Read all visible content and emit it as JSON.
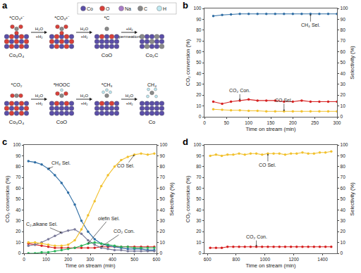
{
  "diagram": {
    "panel": "a",
    "legend": [
      {
        "label": "Co",
        "color": "#5b4fa8"
      },
      {
        "label": "O",
        "color": "#d9403a"
      },
      {
        "label": "Na",
        "color": "#a97cc8"
      },
      {
        "label": "C",
        "color": "#8a8a8a"
      },
      {
        "label": "H",
        "color": "#bfe9f2"
      }
    ],
    "rows": [
      {
        "steps": [
          {
            "adsorbate": "*CO₃²⁻",
            "surface": "Co₃O₄"
          },
          {
            "adsorbate": "*CO₃²⁻"
          },
          {
            "adsorbate": "*C",
            "surface": "CoO"
          },
          {
            "surface": "Co₂C"
          }
        ],
        "arrows": [
          {
            "above": "H₂O",
            "below": "+H₂"
          },
          {
            "above": "H₂O",
            "below": "+H₂"
          },
          {
            "above": "+H₂",
            "below": "permeation"
          }
        ]
      },
      {
        "steps": [
          {
            "adsorbate": "*CO₂",
            "surface": "Co₃O₄"
          },
          {
            "adsorbate": "*HOOC",
            "surface": "CoO"
          },
          {
            "adsorbate": "*CH₃"
          },
          {
            "adsorbate": "CH₄",
            "surface": "Co"
          }
        ],
        "arrows": [
          {
            "above": "H₂O",
            "below": "+H₂"
          },
          {
            "above": "H₂O",
            "below": "+H₂"
          },
          {
            "above": "H₂O",
            "below": "+H₂"
          }
        ]
      }
    ]
  },
  "chart_data": [
    {
      "panel": "b",
      "type": "line",
      "x_label": "Time on stream (min)",
      "y_label": "CO₂ conversion (%)",
      "y2_label": "Selectivity (%)",
      "xlim": [
        0,
        300
      ],
      "xticks": [
        0,
        50,
        100,
        150,
        200,
        250,
        300
      ],
      "ylim": [
        0,
        100
      ],
      "yticks": [
        0,
        10,
        20,
        30,
        40,
        50,
        60,
        70,
        80,
        90,
        100
      ],
      "y2lim": [
        0,
        100
      ],
      "y2ticks": [
        0,
        10,
        20,
        30,
        40,
        50,
        60,
        70,
        80,
        90,
        100
      ],
      "grid": false,
      "x": [
        20,
        40,
        60,
        80,
        100,
        120,
        140,
        160,
        180,
        200,
        220,
        240,
        260,
        280,
        300
      ],
      "series": [
        {
          "name": "CH₄ Sel.",
          "color": "#2e6da4",
          "axis": "y2",
          "values": [
            93,
            94,
            94.5,
            95,
            95,
            95,
            95,
            95,
            95,
            95,
            95,
            95,
            95,
            95,
            95
          ]
        },
        {
          "name": "CO₂ Con.",
          "color": "#d62020",
          "values": [
            14,
            12,
            14,
            15,
            16,
            15,
            15,
            15,
            14,
            14,
            15,
            14,
            14,
            14,
            14
          ]
        },
        {
          "name": "CO Sel.",
          "color": "#f2c12e",
          "axis": "y2",
          "values": [
            7,
            6.5,
            6,
            6,
            5.5,
            5.5,
            5,
            5,
            5,
            5,
            5,
            5,
            5,
            5,
            5
          ]
        }
      ]
    },
    {
      "panel": "c",
      "type": "line",
      "x_label": "Time on stream (min)",
      "y_label": "CO₂ conversion (%)",
      "y2_label": "Selectivity (%)",
      "xlim": [
        0,
        600
      ],
      "xticks": [
        0,
        100,
        200,
        300,
        400,
        500,
        600
      ],
      "ylim": [
        0,
        100
      ],
      "yticks": [
        0,
        10,
        20,
        30,
        40,
        50,
        60,
        70,
        80,
        90,
        100
      ],
      "y2lim": [
        0,
        100
      ],
      "y2ticks": [
        0,
        10,
        20,
        30,
        40,
        50,
        60,
        70,
        80,
        90,
        100
      ],
      "grid": false,
      "x": [
        20,
        50,
        80,
        110,
        140,
        170,
        200,
        230,
        260,
        290,
        320,
        350,
        380,
        410,
        440,
        470,
        500,
        530,
        560,
        590
      ],
      "series": [
        {
          "name": "CH₄ Sel.",
          "color": "#2e6da4",
          "axis": "y2",
          "values": [
            85,
            84,
            82,
            78,
            72,
            65,
            56,
            45,
            30,
            20,
            13,
            9,
            7,
            6,
            5,
            4,
            4,
            4,
            3,
            3
          ]
        },
        {
          "name": "C₂₊alkane Sel.",
          "color": "#7a7a9a",
          "axis": "y2",
          "values": [
            7,
            8,
            10,
            13,
            16,
            19,
            21,
            22,
            18,
            12,
            8,
            5,
            4,
            3,
            3,
            2,
            2,
            2,
            2,
            2
          ]
        },
        {
          "name": "CO Sel.",
          "color": "#f2c12e",
          "axis": "y2",
          "values": [
            10,
            10,
            9,
            8,
            7,
            7,
            8,
            12,
            22,
            35,
            48,
            62,
            72,
            80,
            86,
            89,
            91,
            92,
            91,
            92
          ]
        },
        {
          "name": "olefin Sel.",
          "color": "#2bb35a",
          "axis": "y2",
          "values": [
            0,
            0,
            1,
            1,
            2,
            3,
            4,
            5,
            7,
            9,
            10,
            9,
            8,
            7,
            6,
            6,
            5,
            5,
            5,
            5
          ]
        },
        {
          "name": "CO₂ Con.",
          "color": "#d62020",
          "values": [
            9,
            8,
            7,
            6,
            5,
            5,
            5,
            5,
            5,
            5,
            5,
            6,
            6,
            6,
            6,
            6,
            6,
            6,
            6,
            6
          ]
        }
      ]
    },
    {
      "panel": "d",
      "type": "line",
      "x_label": "Time on stream (min)",
      "y_label": "CO₂ conversion (%)",
      "y2_label": "Selectivity (%)",
      "xlim": [
        580,
        1500
      ],
      "xticks": [
        600,
        800,
        1000,
        1200,
        1400
      ],
      "ylim": [
        0,
        100
      ],
      "yticks": [
        0,
        10,
        20,
        30,
        40,
        50,
        60,
        70,
        80,
        90,
        100
      ],
      "y2lim": [
        0,
        100
      ],
      "y2ticks": [
        0,
        10,
        20,
        30,
        40,
        50,
        60,
        70,
        80,
        90,
        100
      ],
      "grid": false,
      "x": [
        620,
        660,
        700,
        740,
        780,
        820,
        860,
        900,
        940,
        980,
        1020,
        1060,
        1100,
        1140,
        1180,
        1220,
        1260,
        1300,
        1340,
        1380,
        1420,
        1460
      ],
      "series": [
        {
          "name": "CO Sel.",
          "color": "#f2c12e",
          "axis": "y2",
          "values": [
            90,
            91,
            90,
            91,
            91,
            92,
            91,
            92,
            92,
            91,
            92,
            92,
            92,
            91,
            92,
            92,
            93,
            92,
            92,
            93,
            93,
            94
          ]
        },
        {
          "name": "CO₂ Con.",
          "color": "#d62020",
          "values": [
            5,
            5,
            5,
            6,
            6,
            6,
            6,
            6,
            6,
            6,
            6,
            6,
            6,
            6,
            6,
            6,
            6,
            6,
            6,
            6,
            6,
            6
          ]
        }
      ]
    }
  ]
}
